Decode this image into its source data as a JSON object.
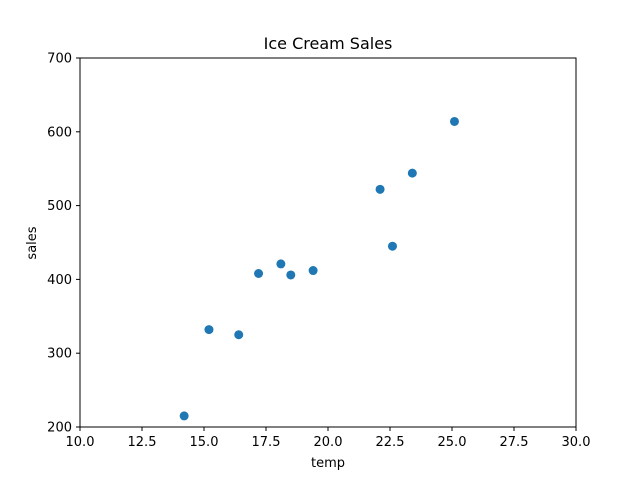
{
  "chart_data": {
    "type": "scatter",
    "title": "Ice Cream Sales",
    "xlabel": "temp",
    "ylabel": "sales",
    "xlim": [
      10.0,
      30.0
    ],
    "ylim": [
      200,
      700
    ],
    "xticks": [
      "10.0",
      "12.5",
      "15.0",
      "17.5",
      "20.0",
      "22.5",
      "25.0",
      "27.5",
      "30.0"
    ],
    "yticks": [
      "200",
      "300",
      "400",
      "500",
      "600",
      "700"
    ],
    "grid": false,
    "marker_color": "#1f77b4",
    "points": [
      {
        "x": 14.2,
        "y": 215
      },
      {
        "x": 15.2,
        "y": 332
      },
      {
        "x": 16.4,
        "y": 325
      },
      {
        "x": 17.2,
        "y": 408
      },
      {
        "x": 18.1,
        "y": 421
      },
      {
        "x": 18.5,
        "y": 406
      },
      {
        "x": 19.4,
        "y": 412
      },
      {
        "x": 22.1,
        "y": 522
      },
      {
        "x": 22.6,
        "y": 445
      },
      {
        "x": 23.4,
        "y": 544
      },
      {
        "x": 25.1,
        "y": 614
      }
    ]
  }
}
